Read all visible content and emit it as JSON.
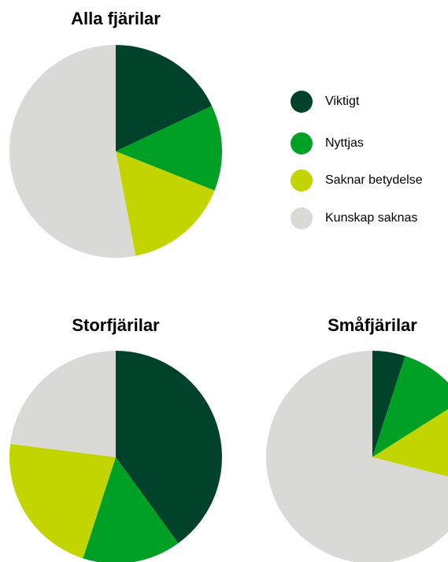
{
  "chart_data": [
    {
      "type": "pie",
      "title": "Alla fjärilar",
      "categories": [
        "Viktigt",
        "Nyttjas",
        "Saknar betydelse",
        "Kunskap saknas"
      ],
      "values": [
        18,
        13,
        16,
        53
      ],
      "colors": [
        "#00422a",
        "#00a024",
        "#c2d500",
        "#d9d9d6"
      ]
    },
    {
      "type": "pie",
      "title": "Storfjärilar",
      "categories": [
        "Viktigt",
        "Nyttjas",
        "Saknar betydelse",
        "Kunskap saknas"
      ],
      "values": [
        40,
        15,
        22,
        23
      ],
      "colors": [
        "#00422a",
        "#00a024",
        "#c2d500",
        "#d9d9d6"
      ]
    },
    {
      "type": "pie",
      "title": "Småfjärilar",
      "categories": [
        "Viktigt",
        "Nyttjas",
        "Saknar betydelse",
        "Kunskap saknas"
      ],
      "values": [
        5,
        11,
        13,
        71
      ],
      "colors": [
        "#00422a",
        "#00a024",
        "#c2d500",
        "#d9d9d6"
      ]
    }
  ]
}
